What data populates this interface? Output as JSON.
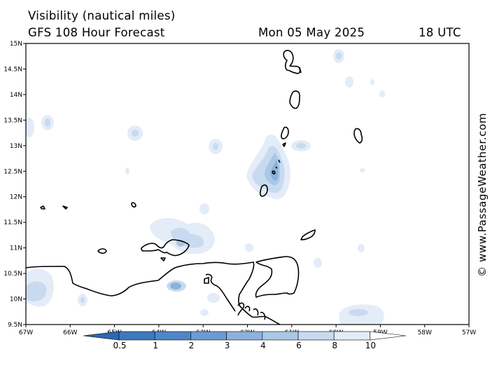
{
  "title": {
    "line1": "Visibility (nautical miles)",
    "line2": "GFS 108 Hour Forecast",
    "date": "Mon 05 May 2025",
    "time": "18 UTC"
  },
  "credit": "© www.PassageWeather.com",
  "map": {
    "lat_labels": [
      "15N",
      "14.5N",
      "14N",
      "13.5N",
      "13N",
      "12.5N",
      "12N",
      "11.5N",
      "11N",
      "10.5N",
      "10N",
      "9.5N"
    ],
    "lon_labels": [
      "67W",
      "66W",
      "65W",
      "64W",
      "63W",
      "62W",
      "61W",
      "60W",
      "59W",
      "58W",
      "57W"
    ]
  },
  "colorbar": {
    "labels": [
      "0.5",
      "1",
      "2",
      "3",
      "4",
      "6",
      "8",
      "10"
    ],
    "colors": [
      "#3f78bd",
      "#4f86c8",
      "#6c9bd2",
      "#8cb1dc",
      "#aac7e6",
      "#c8daef",
      "#e3ecf7",
      "#ffffff"
    ]
  }
}
